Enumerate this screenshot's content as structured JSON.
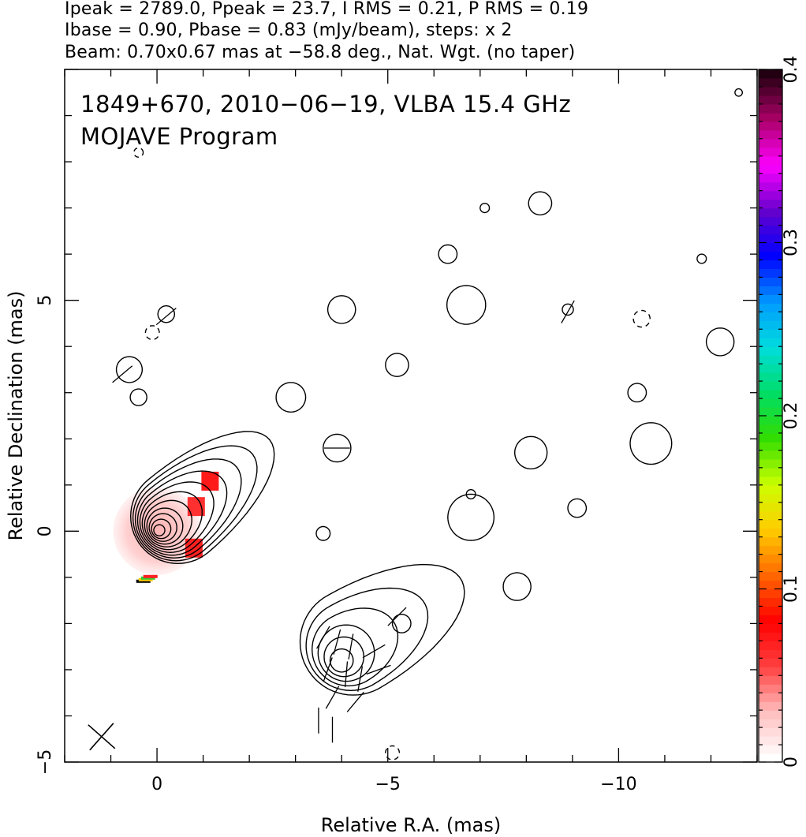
{
  "header": {
    "line1": "Ipeak = 2789.0, Ppeak = 23.7, I RMS = 0.21, P RMS = 0.19",
    "line2": "Ibase = 0.90, Pbase = 0.83 (mJy/beam), steps: x 2",
    "line3": "Beam: 0.70x0.67 mas at −58.8 deg., Nat. Wgt. (no taper)"
  },
  "chart_data": {
    "type": "heatmap",
    "title": "1849+670, 2010−06−19, VLBA 15.4 GHz",
    "subtitle": "MOJAVE Program",
    "xlabel": "Relative R.A. (mas)",
    "ylabel": "Relative Declination (mas)",
    "xlim": [
      2,
      -13
    ],
    "ylim": [
      -5,
      10
    ],
    "x_ticks": [
      {
        "v": 0,
        "label": "0"
      },
      {
        "v": -5,
        "label": "−5"
      },
      {
        "v": -10,
        "label": "−10"
      }
    ],
    "y_ticks": [
      {
        "v": -5,
        "label": "−5"
      },
      {
        "v": 0,
        "label": "0"
      },
      {
        "v": 5,
        "label": "5"
      }
    ],
    "colorbar": {
      "range": [
        0,
        0.4
      ],
      "ticks": [
        {
          "v": 0,
          "label": "0"
        },
        {
          "v": 0.1,
          "label": "0.1"
        },
        {
          "v": 0.2,
          "label": "0.2"
        },
        {
          "v": 0.3,
          "label": "0.3"
        },
        {
          "v": 0.4,
          "label": "0.4"
        }
      ],
      "colors": [
        "#ffffff",
        "#ffbfbf",
        "#ff4040",
        "#ff0000",
        "#ff6600",
        "#ffcc00",
        "#ccff00",
        "#33dd00",
        "#00dd66",
        "#00dddd",
        "#0099ff",
        "#0000ff",
        "#6600cc",
        "#ff00ff",
        "#aa0066",
        "#220011"
      ]
    },
    "core": {
      "x": 0,
      "y": 0,
      "levels": 11
    },
    "secondary_component": {
      "x": -4,
      "y": -2.8,
      "levels": 6
    },
    "beam": {
      "major": 0.7,
      "minor": 0.67,
      "pa_deg": -58.8
    },
    "contour_color": "#000000"
  }
}
